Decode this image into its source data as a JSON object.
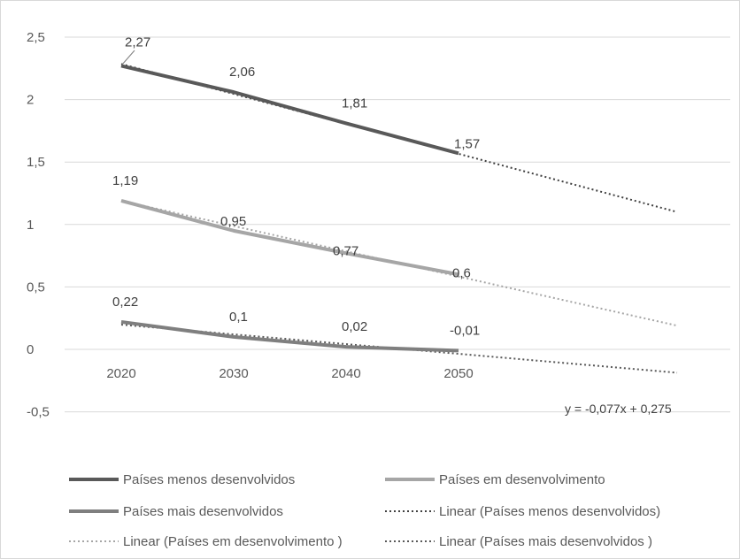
{
  "chart_data": {
    "type": "line",
    "title": "",
    "xlabel": "",
    "ylabel": "",
    "categories": [
      "2020",
      "2030",
      "2040",
      "2050"
    ],
    "ylim": [
      -0.5,
      2.5
    ],
    "yticks": [
      "-0,5",
      "0",
      "0,5",
      "1",
      "1,5",
      "2",
      "2,5"
    ],
    "grid": true,
    "legend_position": "bottom",
    "series": [
      {
        "name": "Países menos desenvolvidos",
        "values": [
          2.27,
          2.06,
          1.81,
          1.57
        ],
        "labels": [
          "2,27",
          "2,06",
          "1,81",
          "1,57"
        ],
        "color": "#595959",
        "trend": {
          "name": "Linear (Países menos desenvolvidos)",
          "start": 2.285,
          "end": 1.1,
          "color": "#404040"
        }
      },
      {
        "name": "Países em desenvolvimento",
        "values": [
          1.19,
          0.95,
          0.77,
          0.6
        ],
        "labels": [
          "1,19",
          "0,95",
          "0,77",
          "0,6"
        ],
        "color": "#a6a6a6",
        "trend": {
          "name": "Linear (Países em desenvolvimento )",
          "start": 1.19,
          "end": 0.19,
          "color": "#a6a6a6"
        }
      },
      {
        "name": "Países mais desenvolvidos",
        "values": [
          0.22,
          0.1,
          0.02,
          -0.01
        ],
        "labels": [
          "0,22",
          "0,1",
          "0,02",
          "-0,01"
        ],
        "color": "#7f7f7f",
        "trend": {
          "name": "Linear (Países mais desenvolvidos )",
          "start": 0.198,
          "end": -0.187,
          "color": "#595959"
        }
      }
    ],
    "annotations": [
      "y = -0,077x + 0,275"
    ]
  }
}
